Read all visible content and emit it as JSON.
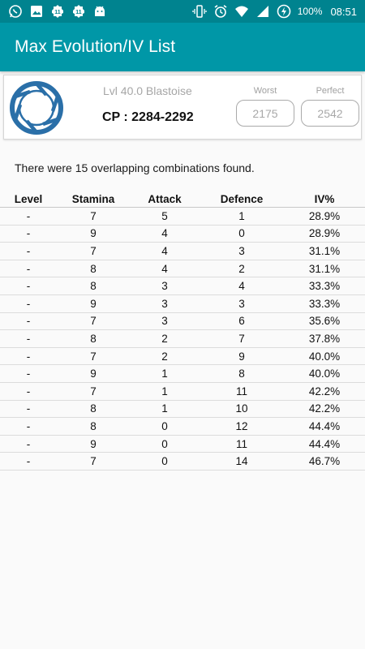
{
  "status_bar": {
    "battery": "100%",
    "time": "08:51",
    "left_icons": [
      "whatsapp-icon",
      "image-icon",
      "app-icon",
      "app-icon",
      "android-icon"
    ],
    "right_icons": [
      "vibrate-icon",
      "alarm-icon",
      "wifi-icon",
      "signal-icon",
      "battery-saver-icon"
    ]
  },
  "app_bar": {
    "title": "Max Evolution/IV List"
  },
  "pokemon": {
    "name": "Lvl 40.0 Blastoise",
    "cp": "CP : 2284-2292",
    "worst_label": "Worst",
    "worst_value": "2175",
    "perfect_label": "Perfect",
    "perfect_value": "2542"
  },
  "message": "There were 15 overlapping combinations found.",
  "table": {
    "headers": [
      "Level",
      "Stamina",
      "Attack",
      "Defence",
      "IV%"
    ],
    "rows": [
      [
        "-",
        "7",
        "5",
        "1",
        "28.9%"
      ],
      [
        "-",
        "9",
        "4",
        "0",
        "28.9%"
      ],
      [
        "-",
        "7",
        "4",
        "3",
        "31.1%"
      ],
      [
        "-",
        "8",
        "4",
        "2",
        "31.1%"
      ],
      [
        "-",
        "8",
        "3",
        "4",
        "33.3%"
      ],
      [
        "-",
        "9",
        "3",
        "3",
        "33.3%"
      ],
      [
        "-",
        "7",
        "3",
        "6",
        "35.6%"
      ],
      [
        "-",
        "8",
        "2",
        "7",
        "37.8%"
      ],
      [
        "-",
        "7",
        "2",
        "9",
        "40.0%"
      ],
      [
        "-",
        "9",
        "1",
        "8",
        "40.0%"
      ],
      [
        "-",
        "7",
        "1",
        "11",
        "42.2%"
      ],
      [
        "-",
        "8",
        "1",
        "10",
        "42.2%"
      ],
      [
        "-",
        "8",
        "0",
        "12",
        "44.4%"
      ],
      [
        "-",
        "9",
        "0",
        "11",
        "44.4%"
      ],
      [
        "-",
        "7",
        "0",
        "14",
        "46.7%"
      ]
    ]
  },
  "colors": {
    "status_bar": "#00838f",
    "app_bar": "#0097a7",
    "logo": "#2a6fa8"
  }
}
